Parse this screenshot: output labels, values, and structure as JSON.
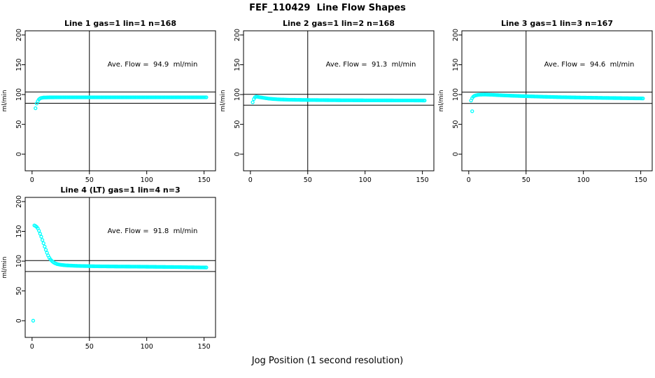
{
  "page": {
    "title": "FEF_110429  Line Flow Shapes",
    "xlabel": "Jog Position (1 second resolution)"
  },
  "colors": {
    "points": "#00FFFF",
    "axis": "#000000",
    "background": "#FFFFFF",
    "text": "#000000"
  },
  "chart_data": [
    {
      "type": "scatter",
      "title": "Line 1 gas=1 lin=1 n=168",
      "gas": 1,
      "lin": 1,
      "n": 168,
      "ave_flow": 94.9,
      "annotation": "Ave. Flow =  94.9  ml/min",
      "ylabel": "ml/min",
      "x_ticks": [
        0,
        50,
        100,
        150
      ],
      "y_ticks": [
        0,
        50,
        100,
        150,
        200
      ],
      "xlim": [
        -6,
        160
      ],
      "ylim": [
        -28,
        207
      ],
      "vline_x": 50,
      "hlines": [
        104.4,
        85.4
      ],
      "marker": "open-circle",
      "points": [
        [
          4,
          85
        ],
        [
          5,
          89
        ],
        [
          6,
          92
        ],
        [
          7,
          93.5
        ],
        [
          8,
          94.3
        ],
        [
          10,
          95
        ],
        [
          15,
          95.3
        ],
        [
          30,
          95.4
        ],
        [
          60,
          95.4
        ],
        [
          100,
          95.4
        ],
        [
          152,
          95.4
        ]
      ],
      "outliers": [
        [
          3,
          77
        ]
      ]
    },
    {
      "type": "scatter",
      "title": "Line 2 gas=1 lin=2 n=168",
      "gas": 1,
      "lin": 2,
      "n": 168,
      "ave_flow": 91.3,
      "annotation": "Ave. Flow =  91.3  ml/min",
      "ylabel": "ml/min",
      "x_ticks": [
        0,
        50,
        100,
        150
      ],
      "y_ticks": [
        0,
        50,
        100,
        150,
        200
      ],
      "xlim": [
        -6,
        160
      ],
      "ylim": [
        -28,
        207
      ],
      "vline_x": 50,
      "hlines": [
        100.4,
        82.2
      ],
      "marker": "open-circle",
      "points": [
        [
          2,
          87
        ],
        [
          3,
          92.5
        ],
        [
          4,
          95.5
        ],
        [
          5,
          96.5
        ],
        [
          6,
          96.3
        ],
        [
          8,
          95.5
        ],
        [
          10,
          95
        ],
        [
          13,
          94
        ],
        [
          16,
          93.2
        ],
        [
          20,
          92.5
        ],
        [
          26,
          91.8
        ],
        [
          34,
          91.3
        ],
        [
          45,
          91
        ],
        [
          60,
          90.7
        ],
        [
          80,
          90.4
        ],
        [
          110,
          90.2
        ],
        [
          152,
          90
        ]
      ],
      "outliers": []
    },
    {
      "type": "scatter",
      "title": "Line 3 gas=1 lin=3 n=167",
      "gas": 1,
      "lin": 3,
      "n": 167,
      "ave_flow": 94.6,
      "annotation": "Ave. Flow =  94.6  ml/min",
      "ylabel": "ml/min",
      "x_ticks": [
        0,
        50,
        100,
        150
      ],
      "y_ticks": [
        0,
        50,
        100,
        150,
        200
      ],
      "xlim": [
        -6,
        160
      ],
      "ylim": [
        -28,
        207
      ],
      "vline_x": 50,
      "hlines": [
        104.1,
        85.1
      ],
      "marker": "open-circle",
      "points": [
        [
          2,
          90
        ],
        [
          3,
          94
        ],
        [
          4,
          96.5
        ],
        [
          5,
          97.8
        ],
        [
          6,
          98.6
        ],
        [
          8,
          99.4
        ],
        [
          10,
          99.8
        ],
        [
          14,
          100
        ],
        [
          20,
          99.6
        ],
        [
          28,
          98.8
        ],
        [
          38,
          98
        ],
        [
          50,
          97.2
        ],
        [
          65,
          96.3
        ],
        [
          80,
          95.6
        ],
        [
          100,
          94.9
        ],
        [
          120,
          94.3
        ],
        [
          140,
          93.8
        ],
        [
          152,
          93.5
        ]
      ],
      "outliers": [
        [
          3,
          72
        ]
      ]
    },
    {
      "type": "scatter",
      "title": "Line 4 (LT) gas=1 lin=4 n=3",
      "gas": 1,
      "lin": 4,
      "n": 3,
      "ave_flow": 91.8,
      "annotation": "Ave. Flow =  91.8  ml/min",
      "ylabel": "ml/min",
      "x_ticks": [
        0,
        50,
        100,
        150
      ],
      "y_ticks": [
        0,
        50,
        100,
        150,
        200
      ],
      "xlim": [
        -6,
        160
      ],
      "ylim": [
        -28,
        207
      ],
      "vline_x": 50,
      "hlines": [
        101.0,
        82.6
      ],
      "marker": "open-circle",
      "points": [
        [
          2,
          160
        ],
        [
          3,
          159
        ],
        [
          4,
          157.5
        ],
        [
          5,
          155
        ],
        [
          6,
          151
        ],
        [
          7,
          146
        ],
        [
          8,
          141
        ],
        [
          9,
          135.5
        ],
        [
          10,
          130
        ],
        [
          11,
          124.5
        ],
        [
          12,
          119
        ],
        [
          13,
          114
        ],
        [
          14,
          109.5
        ],
        [
          15,
          105.8
        ],
        [
          16,
          103
        ],
        [
          17,
          100.8
        ],
        [
          18,
          99
        ],
        [
          19,
          97.6
        ],
        [
          20,
          96.5
        ],
        [
          22,
          95
        ],
        [
          24,
          94.2
        ],
        [
          27,
          93.4
        ],
        [
          30,
          92.9
        ],
        [
          35,
          92.4
        ],
        [
          40,
          92
        ],
        [
          50,
          91.6
        ],
        [
          60,
          91.3
        ],
        [
          75,
          91
        ],
        [
          90,
          90.8
        ],
        [
          110,
          90.4
        ],
        [
          130,
          90
        ],
        [
          152,
          89.4
        ]
      ],
      "outliers": [
        [
          1,
          0
        ]
      ]
    }
  ]
}
